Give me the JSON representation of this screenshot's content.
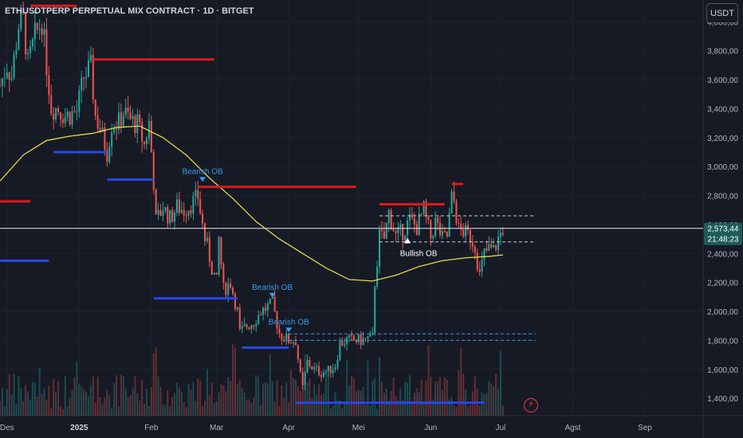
{
  "header": {
    "title": "ETHUSDTPERP PERPETUAL MIX CONTRACT · 1D · BITGET",
    "currency_button": "USDT"
  },
  "colors": {
    "background": "#161a25",
    "up": "#26a69a",
    "down": "#ef5350",
    "ma": "#e8d84a",
    "resistance": "#e01818",
    "support": "#2a45e8",
    "annotation": "#3d9be9"
  },
  "icons": {
    "alert": "lightning-alert-icon"
  },
  "chart_data": {
    "type": "candlestick",
    "symbol": "ETHUSDTPERP",
    "timeframe": "1D",
    "exchange": "BITGET",
    "ylim": [
      1280,
      4150
    ],
    "y_ticks": [
      1400,
      1600,
      1800,
      2000,
      2200,
      2400,
      2600,
      2800,
      3000,
      3200,
      3400,
      3600,
      3800,
      4000
    ],
    "y_tick_labels": [
      "1,400,00",
      "1,600,00",
      "1,800,00",
      "2,000,00",
      "2,200,00",
      "2,400,00",
      "2,600,00",
      "2,800,00",
      "3,000,00",
      "3,200,00",
      "3,400,00",
      "3,600,00",
      "3,800,00",
      "4,000,00"
    ],
    "x_range": [
      "2024-11-28",
      "2025-09-26"
    ],
    "x_ticks": [
      {
        "date": "2024-12-01",
        "label": "Des"
      },
      {
        "date": "2025-01-01",
        "label": "2025"
      },
      {
        "date": "2025-02-01",
        "label": "Feb"
      },
      {
        "date": "2025-03-01",
        "label": "Mar"
      },
      {
        "date": "2025-04-01",
        "label": "Apr"
      },
      {
        "date": "2025-05-01",
        "label": "Mei"
      },
      {
        "date": "2025-06-01",
        "label": "Jun"
      },
      {
        "date": "2025-07-01",
        "label": "Jul"
      },
      {
        "date": "2025-08-01",
        "label": "Agst"
      },
      {
        "date": "2025-09-01",
        "label": "Sep"
      }
    ],
    "current_price": {
      "value": 2573.44,
      "label": "2,573,44",
      "countdown": "21:48:23"
    },
    "close_path": [
      [
        "2024-11-28",
        3560
      ],
      [
        "2024-12-01",
        3700
      ],
      [
        "2024-12-03",
        3620
      ],
      [
        "2024-12-06",
        3980
      ],
      [
        "2024-12-08",
        4010
      ],
      [
        "2024-12-10",
        3700
      ],
      [
        "2024-12-13",
        3900
      ],
      [
        "2024-12-16",
        4010
      ],
      [
        "2024-12-18",
        3700
      ],
      [
        "2024-12-20",
        3410
      ],
      [
        "2024-12-23",
        3400
      ],
      [
        "2024-12-26",
        3350
      ],
      [
        "2024-12-28",
        3360
      ],
      [
        "2024-12-31",
        3380
      ],
      [
        "2025-01-03",
        3620
      ],
      [
        "2025-01-06",
        3680
      ],
      [
        "2025-01-08",
        3350
      ],
      [
        "2025-01-10",
        3260
      ],
      [
        "2025-01-13",
        3100
      ],
      [
        "2025-01-15",
        3300
      ],
      [
        "2025-01-18",
        3300
      ],
      [
        "2025-01-20",
        3380
      ],
      [
        "2025-01-23",
        3320
      ],
      [
        "2025-01-26",
        3290
      ],
      [
        "2025-01-29",
        3150
      ],
      [
        "2025-01-31",
        3300
      ],
      [
        "2025-02-02",
        2900
      ],
      [
        "2025-02-03",
        2620
      ],
      [
        "2025-02-06",
        2720
      ],
      [
        "2025-02-09",
        2640
      ],
      [
        "2025-02-12",
        2720
      ],
      [
        "2025-02-15",
        2700
      ],
      [
        "2025-02-18",
        2740
      ],
      [
        "2025-02-21",
        2790
      ],
      [
        "2025-02-24",
        2500
      ],
      [
        "2025-02-25",
        2450
      ],
      [
        "2025-02-27",
        2300
      ],
      [
        "2025-03-01",
        2200
      ],
      [
        "2025-03-02",
        2500
      ],
      [
        "2025-03-04",
        2150
      ],
      [
        "2025-03-07",
        2200
      ],
      [
        "2025-03-10",
        2000
      ],
      [
        "2025-03-11",
        1850
      ],
      [
        "2025-03-14",
        1900
      ],
      [
        "2025-03-17",
        1930
      ],
      [
        "2025-03-20",
        2000
      ],
      [
        "2025-03-23",
        2030
      ],
      [
        "2025-03-25",
        2050
      ],
      [
        "2025-03-28",
        1850
      ],
      [
        "2025-03-30",
        1820
      ],
      [
        "2025-04-01",
        1800
      ],
      [
        "2025-04-04",
        1800
      ],
      [
        "2025-04-06",
        1550
      ],
      [
        "2025-04-07",
        1470
      ],
      [
        "2025-04-09",
        1650
      ],
      [
        "2025-04-12",
        1600
      ],
      [
        "2025-04-15",
        1580
      ],
      [
        "2025-04-18",
        1590
      ],
      [
        "2025-04-21",
        1630
      ],
      [
        "2025-04-23",
        1780
      ],
      [
        "2025-04-26",
        1800
      ],
      [
        "2025-04-29",
        1800
      ],
      [
        "2025-05-02",
        1800
      ],
      [
        "2025-05-05",
        1810
      ],
      [
        "2025-05-07",
        1820
      ],
      [
        "2025-05-08",
        2200
      ],
      [
        "2025-05-09",
        2350
      ],
      [
        "2025-05-10",
        2520
      ],
      [
        "2025-05-12",
        2500
      ],
      [
        "2025-05-14",
        2680
      ],
      [
        "2025-05-17",
        2520
      ],
      [
        "2025-05-20",
        2550
      ],
      [
        "2025-05-23",
        2630
      ],
      [
        "2025-05-26",
        2580
      ],
      [
        "2025-05-29",
        2700
      ],
      [
        "2025-06-01",
        2510
      ],
      [
        "2025-06-03",
        2620
      ],
      [
        "2025-06-06",
        2500
      ],
      [
        "2025-06-08",
        2520
      ],
      [
        "2025-06-10",
        2780
      ],
      [
        "2025-06-11",
        2760
      ],
      [
        "2025-06-13",
        2560
      ],
      [
        "2025-06-15",
        2550
      ],
      [
        "2025-06-18",
        2520
      ],
      [
        "2025-06-20",
        2450
      ],
      [
        "2025-06-22",
        2250
      ],
      [
        "2025-06-24",
        2400
      ],
      [
        "2025-06-26",
        2430
      ],
      [
        "2025-06-28",
        2420
      ],
      [
        "2025-06-30",
        2500
      ],
      [
        "2025-07-02",
        2573
      ]
    ],
    "moving_average": [
      [
        "2024-11-28",
        2900
      ],
      [
        "2024-12-08",
        3080
      ],
      [
        "2024-12-18",
        3180
      ],
      [
        "2024-12-28",
        3210
      ],
      [
        "2025-01-07",
        3230
      ],
      [
        "2025-01-17",
        3270
      ],
      [
        "2025-01-27",
        3280
      ],
      [
        "2025-02-06",
        3200
      ],
      [
        "2025-02-16",
        3080
      ],
      [
        "2025-02-26",
        2920
      ],
      [
        "2025-03-08",
        2780
      ],
      [
        "2025-03-18",
        2620
      ],
      [
        "2025-03-28",
        2500
      ],
      [
        "2025-04-07",
        2400
      ],
      [
        "2025-04-17",
        2300
      ],
      [
        "2025-04-27",
        2220
      ],
      [
        "2025-05-07",
        2210
      ],
      [
        "2025-05-17",
        2250
      ],
      [
        "2025-05-27",
        2310
      ],
      [
        "2025-06-06",
        2350
      ],
      [
        "2025-06-16",
        2370
      ],
      [
        "2025-06-26",
        2380
      ],
      [
        "2025-07-02",
        2390
      ]
    ],
    "resistance_levels": [
      {
        "from": "2024-12-11",
        "to": "2024-12-31",
        "price": 4110
      },
      {
        "from": "2025-01-07",
        "to": "2025-02-28",
        "price": 3740
      },
      {
        "from": "2024-11-28",
        "to": "2024-12-11",
        "price": 2760
      },
      {
        "from": "2025-02-21",
        "to": "2025-04-30",
        "price": 2860
      },
      {
        "from": "2025-05-10",
        "to": "2025-06-07",
        "price": 2740
      },
      {
        "from": "2025-06-10",
        "to": "2025-06-15",
        "price": 2880
      }
    ],
    "support_levels": [
      {
        "from": "2024-11-28",
        "to": "2024-12-19",
        "price": 2350
      },
      {
        "from": "2024-12-21",
        "to": "2025-01-13",
        "price": 3100
      },
      {
        "from": "2025-01-13",
        "to": "2025-02-02",
        "price": 2910
      },
      {
        "from": "2025-02-02",
        "to": "2025-03-10",
        "price": 2090
      },
      {
        "from": "2025-03-12",
        "to": "2025-04-01",
        "price": 1750
      },
      {
        "from": "2025-04-04",
        "to": "2025-06-24",
        "price": 1370
      }
    ],
    "dashed_levels": [
      {
        "from": "2025-05-10",
        "to": "2025-07-16",
        "price": 2660,
        "color": "#c8ccd6"
      },
      {
        "from": "2025-05-10",
        "to": "2025-07-16",
        "price": 2480,
        "color": "#c8ccd6"
      },
      {
        "from": "2025-04-01",
        "to": "2025-07-16",
        "price": 1845,
        "color": "#3d9be9"
      },
      {
        "from": "2025-04-01",
        "to": "2025-07-16",
        "price": 1800,
        "color": "#3d9be9"
      }
    ],
    "annotations": [
      {
        "text": "Bearish OB",
        "date": "2025-02-23",
        "price": 2950,
        "marker": "down"
      },
      {
        "text": "Bearish OB",
        "date": "2025-03-25",
        "price": 2150,
        "marker": "down"
      },
      {
        "text": "Bearish OB",
        "date": "2025-04-01",
        "price": 1910,
        "marker": "down"
      },
      {
        "text": "Bullish OB",
        "date": "2025-05-22",
        "price": 2470,
        "marker": "up"
      }
    ]
  }
}
